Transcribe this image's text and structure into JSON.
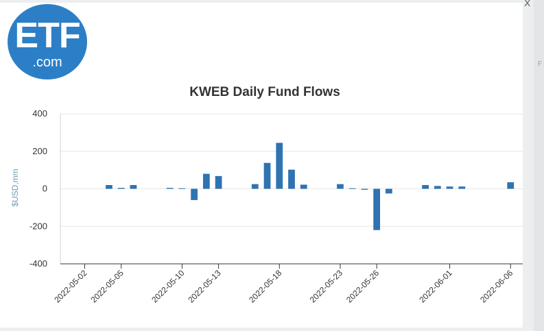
{
  "logo": {
    "primary_text": "ETF",
    "secondary_text": ".com"
  },
  "window": {
    "close_icon": "close-icon",
    "close_glyph": "x"
  },
  "colors": {
    "bar": "#2e73b2",
    "grid": "#e6e6e6",
    "axis": "#333333",
    "ylabel": "#6d9bb0",
    "logo": "#2c7fc6"
  },
  "chart_data": {
    "type": "bar",
    "title": "KWEB Daily Fund Flows",
    "xlabel": "",
    "ylabel": "$USD,mm",
    "ylim": [
      -400,
      400
    ],
    "yticks": [
      400,
      200,
      0,
      -200,
      -400
    ],
    "xlim": [
      "2022-04-30",
      "2022-06-07"
    ],
    "xticks": [
      "2022-05-02",
      "2022-05-05",
      "2022-05-10",
      "2022-05-13",
      "2022-05-18",
      "2022-05-23",
      "2022-05-26",
      "2022-06-01",
      "2022-06-06"
    ],
    "categories": [
      "2022-05-04",
      "2022-05-05",
      "2022-05-06",
      "2022-05-09",
      "2022-05-10",
      "2022-05-11",
      "2022-05-12",
      "2022-05-13",
      "2022-05-16",
      "2022-05-17",
      "2022-05-18",
      "2022-05-19",
      "2022-05-20",
      "2022-05-23",
      "2022-05-24",
      "2022-05-25",
      "2022-05-26",
      "2022-05-27",
      "2022-05-30",
      "2022-05-31",
      "2022-06-01",
      "2022-06-02",
      "2022-06-06"
    ],
    "values": [
      20,
      5,
      20,
      5,
      3,
      -60,
      80,
      68,
      25,
      138,
      245,
      102,
      22,
      25,
      3,
      -5,
      -220,
      -25,
      20,
      15,
      12,
      12,
      35
    ]
  }
}
